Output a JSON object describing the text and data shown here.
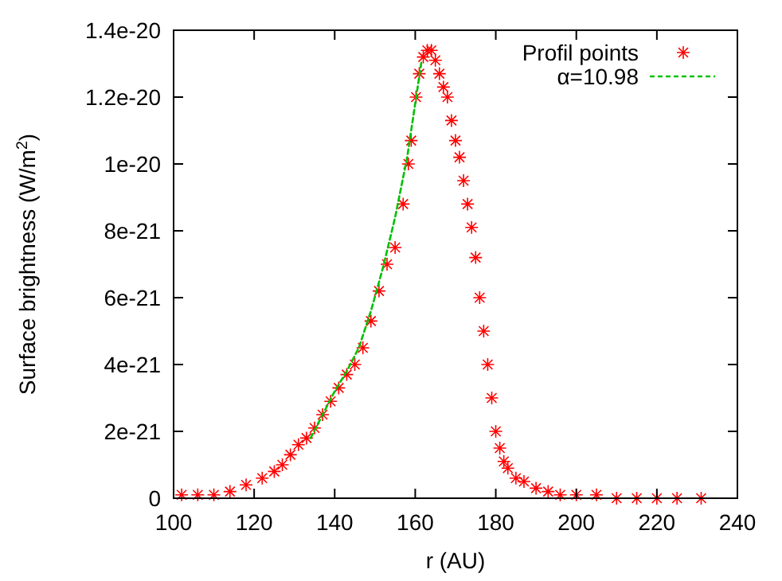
{
  "chart_data": {
    "type": "scatter",
    "xlabel": "r (AU)",
    "ylabel": "Surface brightness (W/m$^{2}$)",
    "xlim": [
      100,
      240
    ],
    "xticks": [
      100,
      120,
      140,
      160,
      180,
      200,
      220,
      240
    ],
    "ylim": [
      0,
      1.4e-20
    ],
    "yticks": [
      {
        "value": 0,
        "label": "0"
      },
      {
        "value": 2e-21,
        "label": "2e-21"
      },
      {
        "value": 4e-21,
        "label": "4e-21"
      },
      {
        "value": 6e-21,
        "label": "6e-21"
      },
      {
        "value": 8e-21,
        "label": "8e-21"
      },
      {
        "value": 1e-20,
        "label": "1e-20"
      },
      {
        "value": 1.2e-20,
        "label": "1.2e-20"
      },
      {
        "value": 1.4e-20,
        "label": "1.4e-20"
      }
    ],
    "legend": "top right",
    "series": [
      {
        "name": "Profil points",
        "type": "scatter",
        "marker": "cross",
        "color": "#ff0000",
        "x": [
          102,
          106,
          110,
          114,
          118,
          122,
          125,
          127,
          129,
          131,
          133,
          135,
          137,
          139,
          141,
          143,
          145,
          147,
          149,
          151,
          153,
          155,
          157,
          158.3,
          159,
          160.2,
          161,
          162,
          163,
          164,
          165,
          166,
          167,
          168,
          169,
          170,
          171,
          172,
          173,
          174,
          175,
          176,
          177,
          178,
          179,
          180,
          181,
          182,
          183,
          185,
          187,
          190,
          193,
          196,
          200,
          205,
          210,
          215,
          220,
          225,
          231
        ],
        "values": [
          1e-22,
          1e-22,
          1e-22,
          2e-22,
          4e-22,
          6e-22,
          8e-22,
          1e-21,
          1.3e-21,
          1.6e-21,
          1.8e-21,
          2.1e-21,
          2.5e-21,
          2.9e-21,
          3.3e-21,
          3.7e-21,
          4e-21,
          4.5e-21,
          5.3e-21,
          6.2e-21,
          7e-21,
          7.5e-21,
          8.8e-21,
          1e-20,
          1.07e-20,
          1.2e-20,
          1.27e-20,
          1.32e-20,
          1.34e-20,
          1.34e-20,
          1.31e-20,
          1.27e-20,
          1.23e-20,
          1.2e-20,
          1.13e-20,
          1.07e-20,
          1.02e-20,
          9.5e-21,
          8.8e-21,
          8.1e-21,
          7.2e-21,
          6e-21,
          5e-21,
          4e-21,
          3e-21,
          2e-21,
          1.5e-21,
          1.1e-21,
          9e-22,
          6e-22,
          5e-22,
          3e-22,
          2e-22,
          1e-22,
          1e-22,
          1e-22,
          0,
          0,
          0,
          0,
          0
        ]
      },
      {
        "name": "α=10.98",
        "type": "line",
        "line_style": "dashed",
        "color": "#00c000",
        "x": [
          134,
          137,
          140,
          143,
          146,
          149,
          152,
          155,
          158,
          161.6
        ],
        "values": [
          1.8e-21,
          2.5e-21,
          3.2e-21,
          3.8e-21,
          4.5e-21,
          5.6e-21,
          6.9e-21,
          8.4e-21,
          1.02e-20,
          1.31e-20
        ]
      }
    ]
  }
}
